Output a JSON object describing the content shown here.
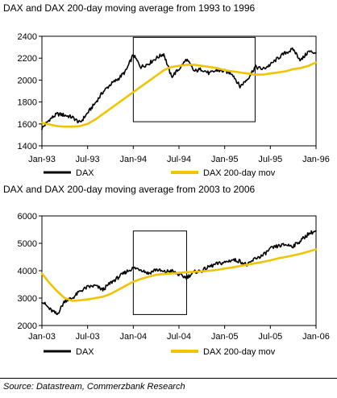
{
  "chart_data": [
    {
      "type": "line",
      "title": "DAX and DAX 200-day moving average from 1993 to 1996",
      "x_unit": "month",
      "x_ticks": [
        "Jan-93",
        "Jul-93",
        "Jan-94",
        "Jul-94",
        "Jan-95",
        "Jul-95",
        "Jan-96"
      ],
      "xlim": [
        "1993-01",
        "1996-01"
      ],
      "ylim": [
        1400,
        2400
      ],
      "y_ticks": [
        "1400",
        "1600",
        "1800",
        "2000",
        "2200",
        "2400"
      ],
      "grid": false,
      "legend_position": "bottom",
      "highlight_box": {
        "x": [
          "1994-01",
          "1995-05"
        ],
        "y": [
          1620,
          2390
        ]
      },
      "series": [
        {
          "name": "DAX",
          "color": "#000000",
          "x": [
            "1993-01",
            "1993-02",
            "1993-03",
            "1993-04",
            "1993-05",
            "1993-06",
            "1993-07",
            "1993-08",
            "1993-09",
            "1993-10",
            "1993-11",
            "1993-12",
            "1994-01",
            "1994-02",
            "1994-03",
            "1994-04",
            "1994-05",
            "1994-06",
            "1994-07",
            "1994-08",
            "1994-09",
            "1994-10",
            "1994-11",
            "1994-12",
            "1995-01",
            "1995-02",
            "1995-03",
            "1995-04",
            "1995-05",
            "1995-06",
            "1995-07",
            "1995-08",
            "1995-09",
            "1995-10",
            "1995-11",
            "1995-12",
            "1996-01"
          ],
          "values": [
            1560,
            1640,
            1690,
            1680,
            1660,
            1610,
            1700,
            1790,
            1890,
            1960,
            2010,
            2080,
            2230,
            2120,
            2150,
            2200,
            2240,
            2030,
            2100,
            2190,
            2080,
            2100,
            2060,
            2090,
            2080,
            2060,
            1940,
            2010,
            2120,
            2100,
            2140,
            2200,
            2250,
            2280,
            2180,
            2260,
            2250
          ]
        },
        {
          "name": "DAX 200-day mov",
          "color": "#f0c400",
          "x": [
            "1993-01",
            "1993-02",
            "1993-03",
            "1993-04",
            "1993-05",
            "1993-06",
            "1993-07",
            "1993-08",
            "1993-09",
            "1993-10",
            "1993-11",
            "1993-12",
            "1994-01",
            "1994-02",
            "1994-03",
            "1994-04",
            "1994-05",
            "1994-06",
            "1994-07",
            "1994-08",
            "1994-09",
            "1994-10",
            "1994-11",
            "1994-12",
            "1995-01",
            "1995-02",
            "1995-03",
            "1995-04",
            "1995-05",
            "1995-06",
            "1995-07",
            "1995-08",
            "1995-09",
            "1995-10",
            "1995-11",
            "1995-12",
            "1996-01"
          ],
          "values": [
            1610,
            1595,
            1580,
            1575,
            1575,
            1580,
            1600,
            1640,
            1690,
            1740,
            1790,
            1840,
            1890,
            1940,
            1990,
            2040,
            2090,
            2120,
            2130,
            2140,
            2140,
            2130,
            2120,
            2110,
            2090,
            2080,
            2070,
            2060,
            2050,
            2050,
            2060,
            2070,
            2080,
            2100,
            2110,
            2130,
            2160
          ]
        }
      ]
    },
    {
      "type": "line",
      "title": "DAX and DAX 200-day moving average from 2003 to 2006",
      "x_unit": "month",
      "x_ticks": [
        "Jan-03",
        "Jul-03",
        "Jan-04",
        "Jul-04",
        "Jan-05",
        "Jul-05",
        "Jan-06"
      ],
      "xlim": [
        "2003-01",
        "2006-01"
      ],
      "ylim": [
        2000,
        6000
      ],
      "y_ticks": [
        "2000",
        "3000",
        "4000",
        "5000",
        "6000"
      ],
      "grid": false,
      "legend_position": "bottom",
      "highlight_box": {
        "x": [
          "2004-01",
          "2004-08"
        ],
        "y": [
          2400,
          5450
        ]
      },
      "series": [
        {
          "name": "DAX",
          "color": "#000000",
          "x": [
            "2003-01",
            "2003-02",
            "2003-03",
            "2003-04",
            "2003-05",
            "2003-06",
            "2003-07",
            "2003-08",
            "2003-09",
            "2003-10",
            "2003-11",
            "2003-12",
            "2004-01",
            "2004-02",
            "2004-03",
            "2004-04",
            "2004-05",
            "2004-06",
            "2004-07",
            "2004-08",
            "2004-09",
            "2004-10",
            "2004-11",
            "2004-12",
            "2005-01",
            "2005-02",
            "2005-03",
            "2005-04",
            "2005-05",
            "2005-06",
            "2005-07",
            "2005-08",
            "2005-09",
            "2005-10",
            "2005-11",
            "2005-12",
            "2006-01"
          ],
          "values": [
            2900,
            2600,
            2400,
            2900,
            3000,
            3250,
            3400,
            3450,
            3300,
            3550,
            3750,
            3950,
            4100,
            4050,
            3900,
            4050,
            3950,
            4000,
            3850,
            3750,
            3950,
            4000,
            4150,
            4250,
            4300,
            4400,
            4350,
            4200,
            4450,
            4550,
            4800,
            4900,
            4950,
            4900,
            5100,
            5350,
            5450
          ]
        },
        {
          "name": "DAX 200-day mov",
          "color": "#f0c400",
          "x": [
            "2003-01",
            "2003-02",
            "2003-03",
            "2003-04",
            "2003-05",
            "2003-06",
            "2003-07",
            "2003-08",
            "2003-09",
            "2003-10",
            "2003-11",
            "2003-12",
            "2004-01",
            "2004-02",
            "2004-03",
            "2004-04",
            "2004-05",
            "2004-06",
            "2004-07",
            "2004-08",
            "2004-09",
            "2004-10",
            "2004-11",
            "2004-12",
            "2005-01",
            "2005-02",
            "2005-03",
            "2005-04",
            "2005-05",
            "2005-06",
            "2005-07",
            "2005-08",
            "2005-09",
            "2005-10",
            "2005-11",
            "2005-12",
            "2006-01"
          ],
          "values": [
            3900,
            3550,
            3250,
            3000,
            2900,
            2920,
            2950,
            3000,
            3050,
            3150,
            3300,
            3450,
            3600,
            3700,
            3780,
            3850,
            3880,
            3900,
            3920,
            3950,
            3960,
            3980,
            4000,
            4030,
            4080,
            4120,
            4170,
            4220,
            4270,
            4320,
            4380,
            4450,
            4500,
            4560,
            4620,
            4700,
            4780
          ]
        }
      ]
    }
  ],
  "source": "Source: Datastream, Commerzbank Research"
}
